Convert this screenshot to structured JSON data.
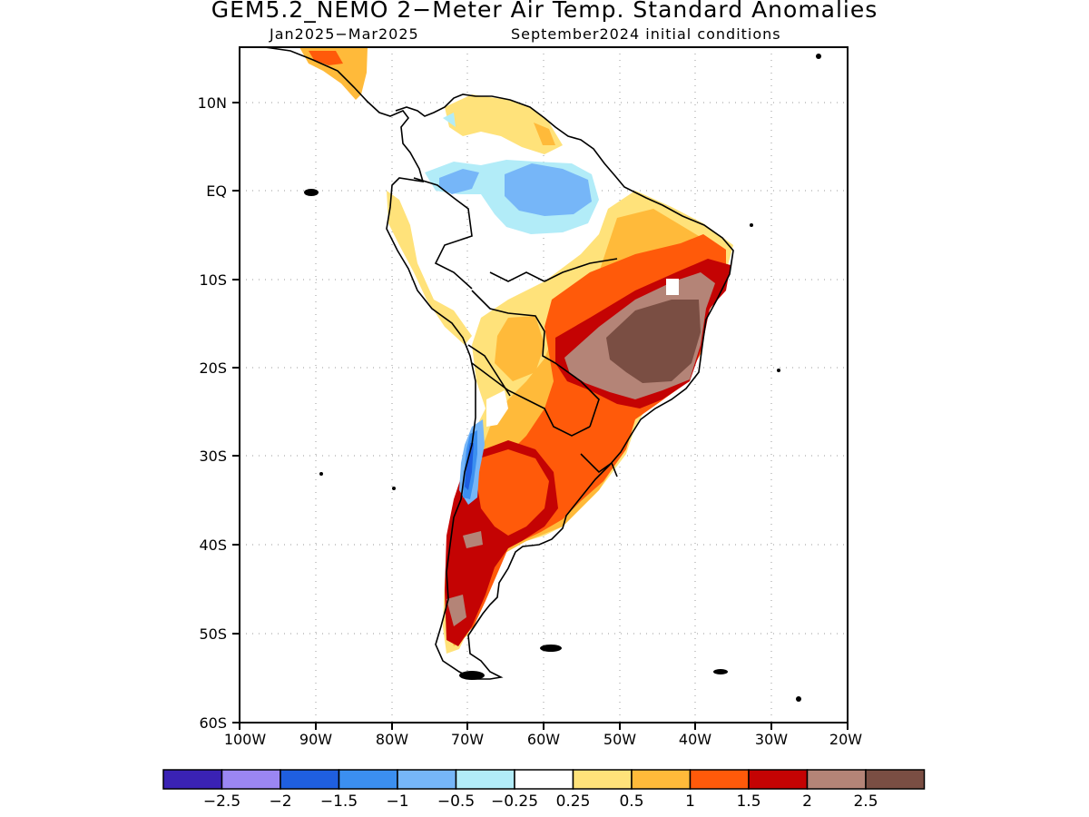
{
  "title": "GEM5.2_NEMO 2−Meter Air Temp. Standard Anomalies",
  "period": "Jan2025−Mar2025",
  "init": "September2024 initial conditions",
  "lat_labels": [
    "10N",
    "EQ",
    "10S",
    "20S",
    "30S",
    "40S",
    "50S",
    "60S"
  ],
  "lon_labels": [
    "100W",
    "90W",
    "80W",
    "70W",
    "60W",
    "50W",
    "40W",
    "30W",
    "20W"
  ],
  "colorbar": {
    "colors": [
      "#3a22b4",
      "#9b86f2",
      "#1f5fe0",
      "#3b8ff0",
      "#76b6f8",
      "#b2ecf8",
      "#ffffff",
      "#ffe27a",
      "#ffba3a",
      "#ff5a0a",
      "#c40303",
      "#b48477",
      "#7a4e43"
    ],
    "labels": [
      "−2.5",
      "−2",
      "−1.5",
      "−1",
      "−0.5",
      "−0.25",
      "0.25",
      "0.5",
      "1",
      "1.5",
      "2",
      "2.5"
    ]
  }
}
